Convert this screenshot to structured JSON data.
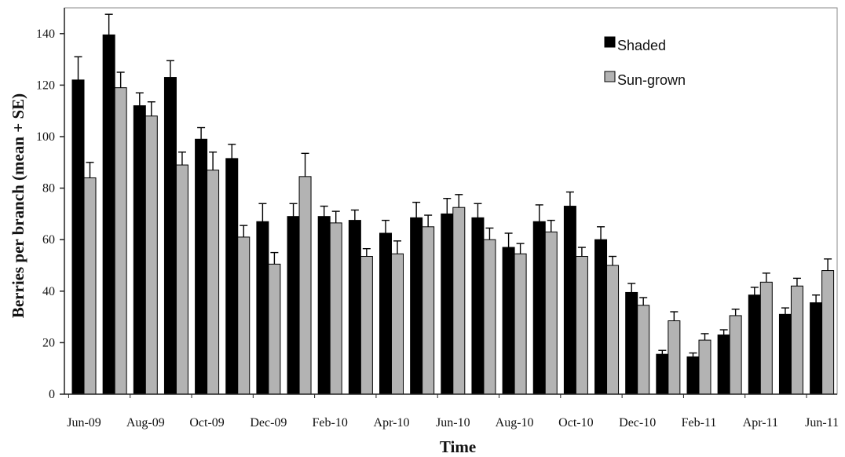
{
  "chart_data": {
    "type": "bar",
    "title": "",
    "xlabel": "Time",
    "ylabel": "Berries per branch (mean + SE)",
    "ylim": [
      0,
      150
    ],
    "yticks": [
      0,
      20,
      40,
      60,
      80,
      100,
      120,
      140
    ],
    "x_tick_labels": [
      "Jun-09",
      "Aug-09",
      "Oct-09",
      "Dec-09",
      "Feb-10",
      "Apr-10",
      "Jun-10",
      "Aug-10",
      "Oct-10",
      "Dec-10",
      "Feb-11",
      "Apr-11",
      "Jun-11"
    ],
    "legend_placement": "top-right",
    "grid": false,
    "series": [
      {
        "name": "Shaded",
        "color": "#000000",
        "values": [
          122,
          139.5,
          112,
          123,
          99,
          91.5,
          67,
          69,
          69,
          67.5,
          62.5,
          68.5,
          70,
          68.5,
          57,
          67,
          73,
          60,
          39.5,
          15.5,
          14.5,
          23,
          38.5,
          31,
          35.5
        ],
        "errors": [
          9,
          8,
          5,
          6.5,
          4.5,
          5.5,
          7,
          5,
          4,
          4,
          5,
          6,
          6,
          5.5,
          5.5,
          6.5,
          5.5,
          5,
          3.5,
          1.5,
          1.5,
          2,
          3,
          2.5,
          3
        ]
      },
      {
        "name": "Sun-grown",
        "color": "#b3b3b3",
        "values": [
          84,
          119,
          108,
          89,
          87,
          61,
          50.5,
          84.5,
          66.5,
          53.5,
          54.5,
          65,
          72.5,
          60,
          54.5,
          63,
          53.5,
          50,
          34.5,
          28.5,
          21,
          30.5,
          43.5,
          42,
          48
        ],
        "errors": [
          6,
          6,
          5.5,
          5,
          7,
          4.5,
          4.5,
          9,
          4.5,
          3,
          5,
          4.5,
          5,
          4.5,
          4,
          4.5,
          3.5,
          3.5,
          3,
          3.5,
          2.5,
          2.5,
          3.5,
          3,
          4.5
        ]
      }
    ]
  }
}
